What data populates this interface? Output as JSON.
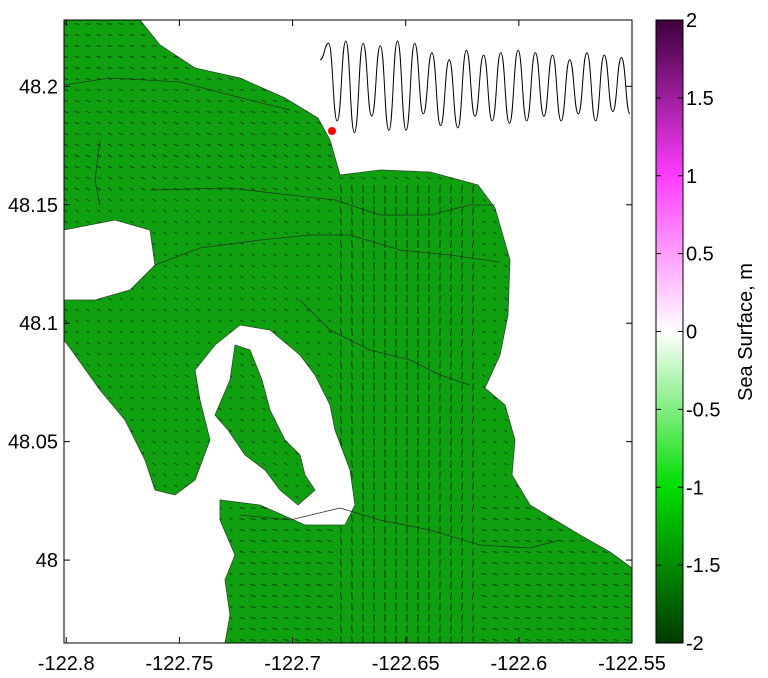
{
  "chart_data": {
    "type": "map",
    "plot_kind": "sea-surface elevation with current vectors",
    "xaxis": {
      "range": [
        -122.801,
        -122.55
      ],
      "ticks": [
        -122.8,
        -122.75,
        -122.7,
        -122.65,
        -122.6,
        -122.55
      ],
      "tick_labels": [
        "-122.8",
        "-122.75",
        "-122.7",
        "-122.65",
        "-122.6",
        "-122.55"
      ]
    },
    "yaxis": {
      "range": [
        47.965,
        48.228
      ],
      "ticks": [
        48.0,
        48.05,
        48.1,
        48.15,
        48.2
      ],
      "tick_labels": [
        "48",
        "48.05",
        "48.1",
        "48.15",
        "48.2"
      ]
    },
    "field_color": "#0fa00f",
    "land_color": "#ffffff",
    "colorbar": {
      "label": "Sea Surface, m",
      "range": [
        -2,
        2
      ],
      "ticks": [
        2,
        1.5,
        1,
        0.5,
        0,
        -0.5,
        -1,
        -1.5,
        -2
      ],
      "tick_labels": [
        "2",
        "1.5",
        "1",
        "0.5",
        "0",
        "-0.5",
        "-1",
        "-1.5",
        "-2"
      ],
      "colors": {
        "min": "#004000",
        "low": "#00e000",
        "mid": "#ffffff",
        "high": "#ff00ff",
        "max": "#400040"
      }
    },
    "inset_timeseries": {
      "description": "tidal elevation time series",
      "marker_color": "#ff0000",
      "values": [
        0.6,
        0.95,
        -0.7,
        1.0,
        -0.95,
        0.95,
        -0.6,
        0.9,
        -0.9,
        1.0,
        -0.9,
        0.95,
        -0.55,
        0.75,
        -0.8,
        0.6,
        -0.85,
        0.8,
        -0.6,
        0.7,
        -0.7,
        0.75,
        -0.75,
        0.8,
        -0.7,
        0.75,
        -0.6,
        0.7,
        -0.7,
        0.6,
        -0.55,
        0.75,
        -0.7,
        0.7,
        -0.5,
        0.65,
        -0.55
      ]
    }
  }
}
